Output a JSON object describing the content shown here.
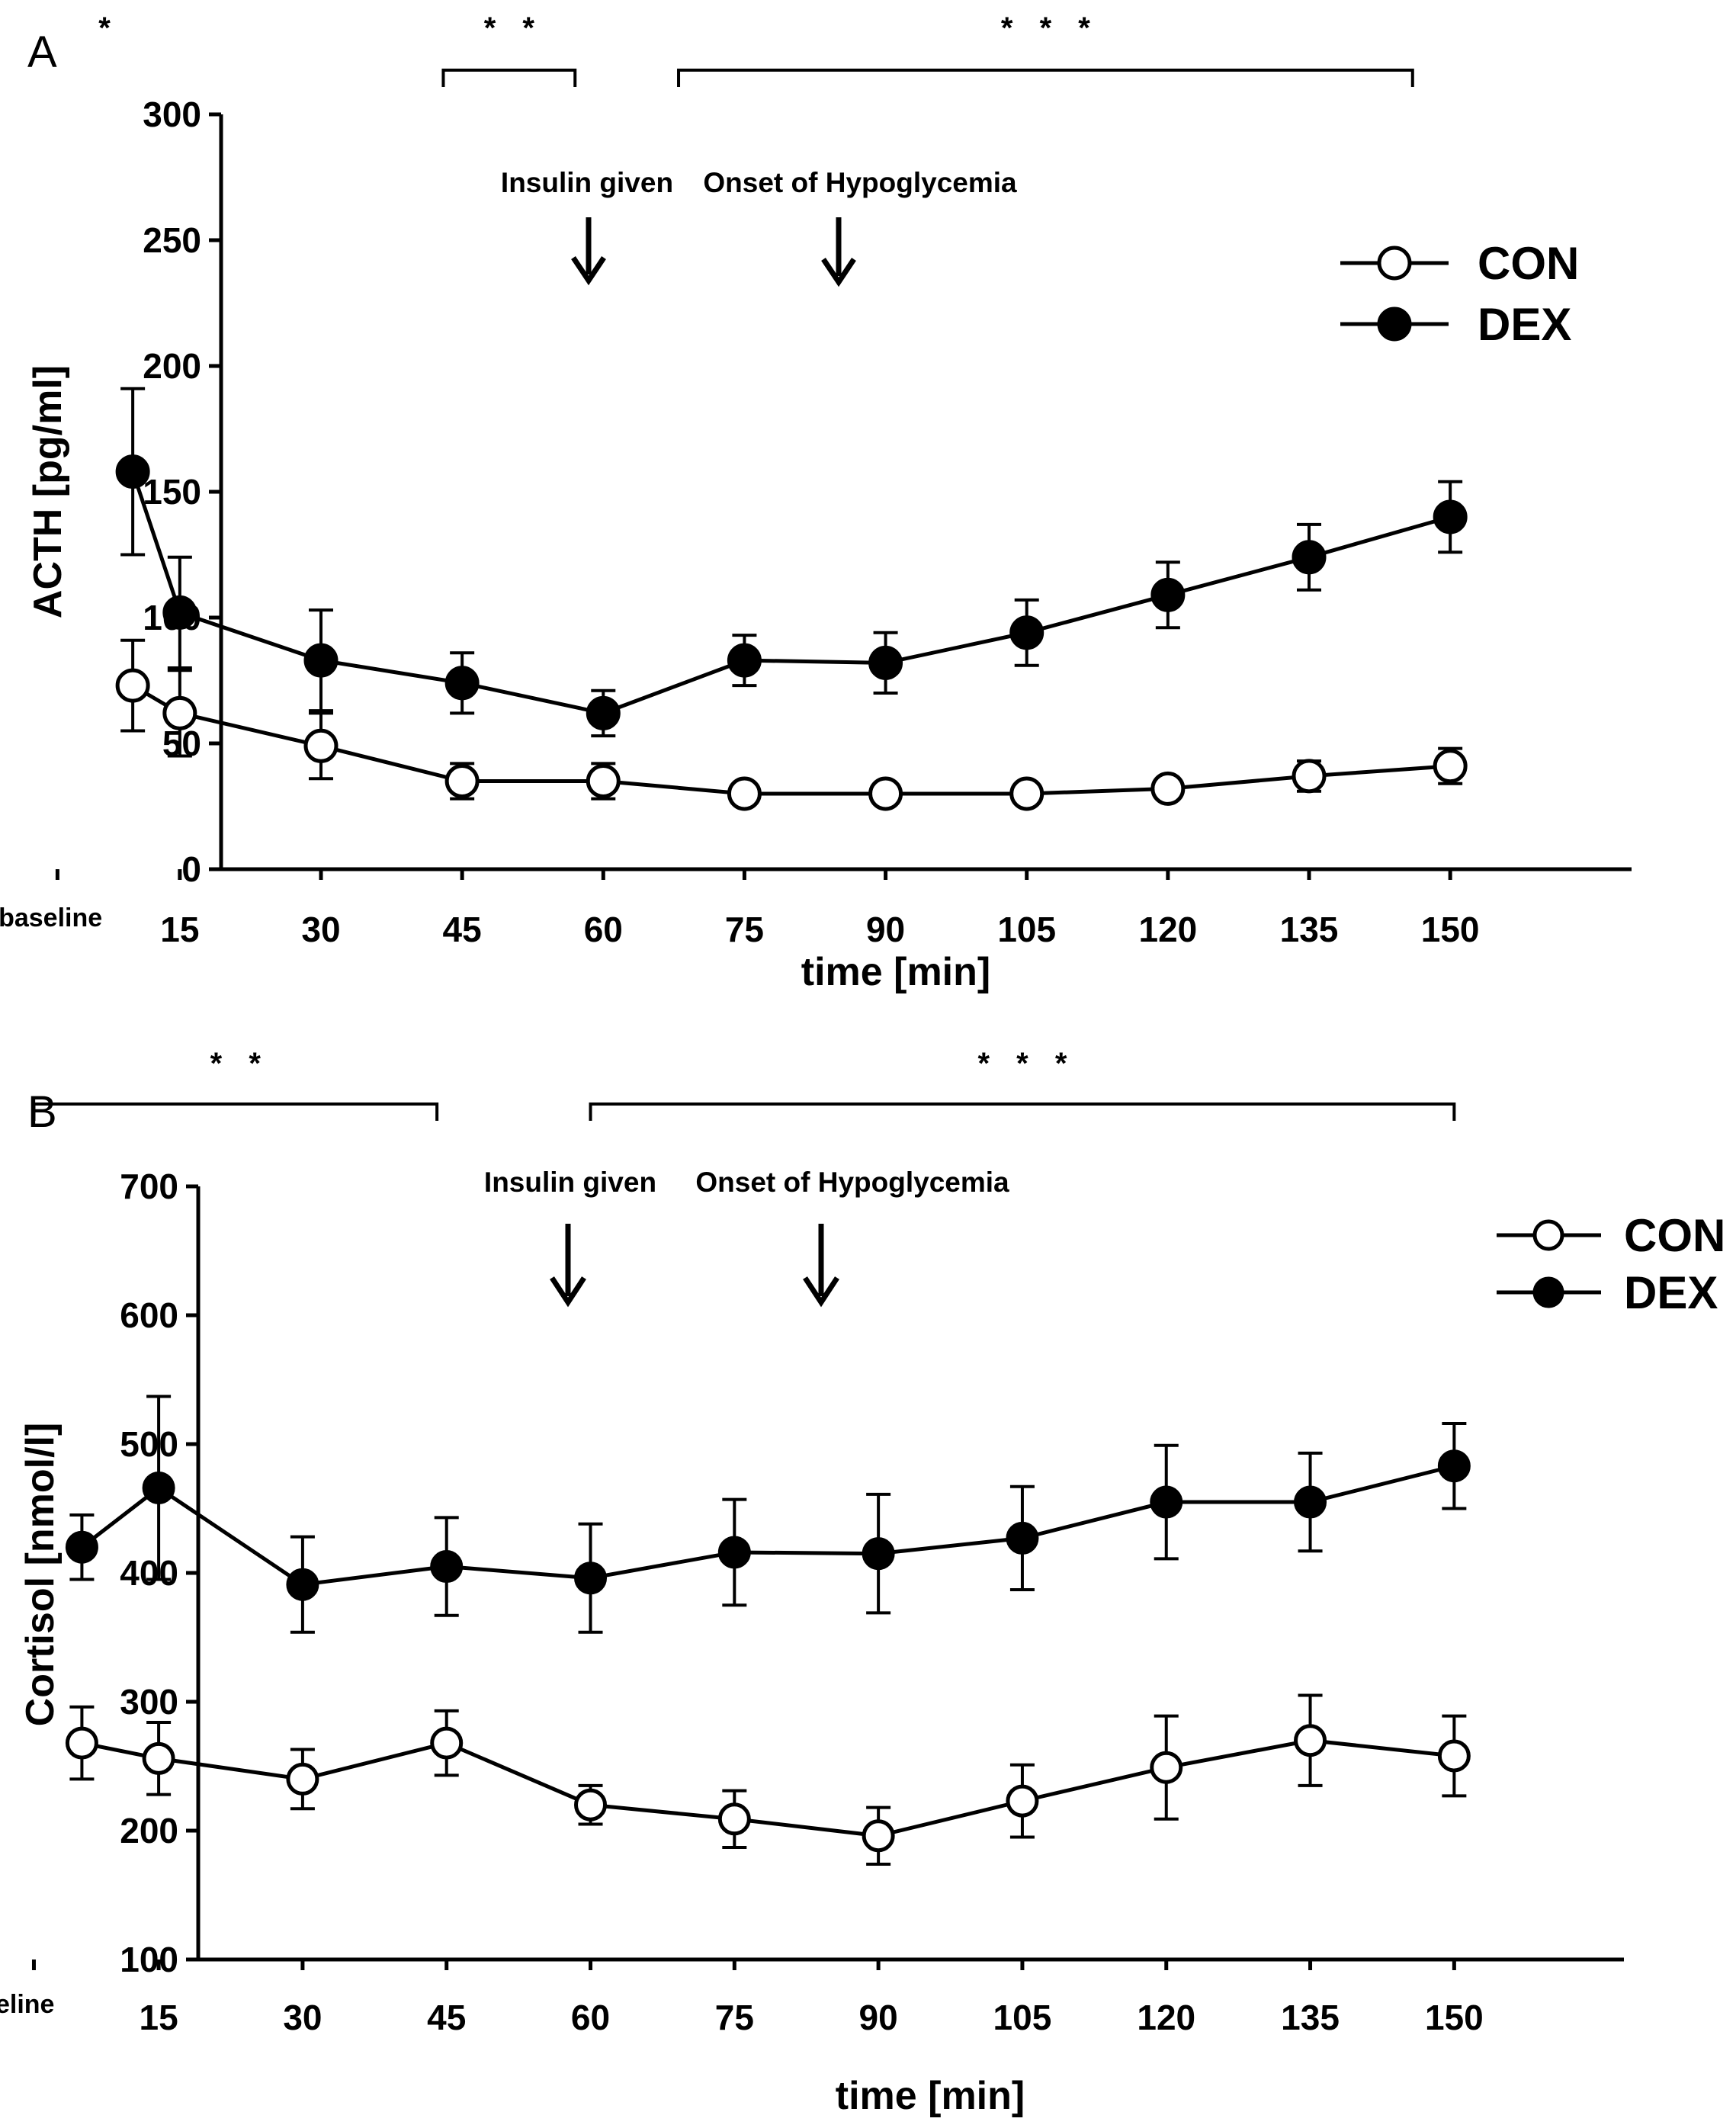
{
  "chart_data": [
    {
      "panel": "A",
      "type": "line",
      "ylabel": "ACTH [pg/ml]",
      "xlabel": "time [min]",
      "ylim": [
        0,
        300
      ],
      "yticks": [
        "0",
        "50",
        "100",
        "150",
        "200",
        "250",
        "300"
      ],
      "categories": [
        "baseline",
        "15",
        "30",
        "45",
        "60",
        "75",
        "90",
        "105",
        "120",
        "135",
        "150"
      ],
      "x": [
        10,
        15,
        30,
        45,
        60,
        75,
        90,
        105,
        120,
        135,
        150
      ],
      "series": [
        {
          "name": "CON",
          "marker": "open",
          "values": [
            73,
            62,
            49,
            35,
            35,
            30,
            30,
            30,
            32,
            37,
            41
          ],
          "errors": [
            18,
            17,
            13,
            7,
            7,
            3,
            3,
            3,
            4,
            6,
            7
          ]
        },
        {
          "name": "DEX",
          "marker": "filled",
          "values": [
            158,
            102,
            83,
            74,
            62,
            83,
            82,
            94,
            109,
            124,
            140
          ],
          "errors": [
            33,
            22,
            20,
            12,
            9,
            10,
            12,
            13,
            13,
            13,
            14
          ]
        }
      ],
      "annotations": [
        {
          "text": "Insulin given",
          "x": 30
        },
        {
          "text": "Onset of Hypoglycemia",
          "x": 60
        }
      ],
      "significance": [
        {
          "text": "*",
          "from": 7,
          "to": 7,
          "bracket": false
        },
        {
          "text": "* *",
          "from": 43,
          "to": 57,
          "bracket": true
        },
        {
          "text": "* * *",
          "from": 68,
          "to": 146,
          "bracket": true
        }
      ]
    },
    {
      "panel": "B",
      "type": "line",
      "ylabel": "Cortisol [nmol/l]",
      "xlabel": "time [min]",
      "ylim": [
        100,
        700
      ],
      "yticks": [
        "100",
        "200",
        "300",
        "400",
        "500",
        "600",
        "700"
      ],
      "categories": [
        "baseline",
        "15",
        "30",
        "45",
        "60",
        "75",
        "90",
        "105",
        "120",
        "135",
        "150"
      ],
      "x": [
        7,
        15,
        30,
        45,
        60,
        75,
        90,
        105,
        120,
        135,
        150
      ],
      "series": [
        {
          "name": "CON",
          "marker": "open",
          "values": [
            268,
            256,
            240,
            268,
            220,
            209,
            196,
            223,
            249,
            270,
            258
          ],
          "errors": [
            28,
            28,
            23,
            25,
            15,
            22,
            22,
            28,
            40,
            35,
            31
          ]
        },
        {
          "name": "DEX",
          "marker": "filled",
          "values": [
            420,
            466,
            391,
            405,
            396,
            416,
            415,
            427,
            455,
            455,
            483
          ],
          "errors": [
            25,
            71,
            37,
            38,
            42,
            41,
            46,
            40,
            44,
            38,
            33
          ]
        }
      ],
      "annotations": [
        {
          "text": "Insulin given",
          "x": 30
        },
        {
          "text": "Onset of Hypoglycemia",
          "x": 60
        }
      ],
      "significance": [
        {
          "text": "* *",
          "from": 2,
          "to": 44,
          "bracket": true
        },
        {
          "text": "* * *",
          "from": 60,
          "to": 150,
          "bracket": true
        }
      ]
    }
  ]
}
